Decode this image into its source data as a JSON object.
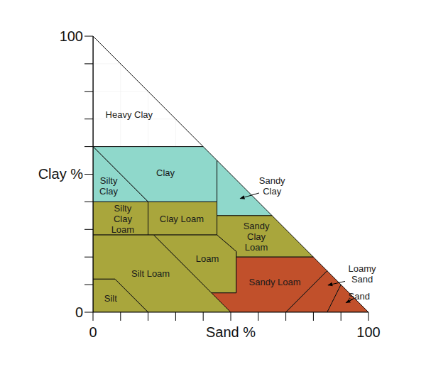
{
  "chart_data": {
    "type": "texture_triangle",
    "x_label": "Sand %",
    "y_label": "Clay %",
    "xlim": [
      0,
      100
    ],
    "ylim": [
      0,
      100
    ],
    "xticks": [
      0,
      100
    ],
    "yticks": [
      0,
      100
    ],
    "grid": true,
    "regions": [
      {
        "name": "Heavy Clay",
        "color": "#ffffff",
        "sand": [
          0,
          40,
          0
        ],
        "clay": [
          60,
          60,
          100
        ]
      },
      {
        "name": "Clay",
        "color": "#8fd8cb",
        "sand": [
          0,
          40,
          45,
          45,
          20
        ],
        "clay": [
          60,
          60,
          55,
          40,
          40
        ]
      },
      {
        "name": "Silty Clay",
        "color": "#8fd8cb",
        "sand": [
          0,
          20,
          0
        ],
        "clay": [
          40,
          40,
          60
        ]
      },
      {
        "name": "Silty Clay Loam",
        "color": "#a9a63c",
        "sand": [
          0,
          20,
          20,
          0
        ],
        "clay": [
          40,
          40,
          28,
          28
        ]
      },
      {
        "name": "Clay Loam",
        "color": "#a9a63c",
        "sand": [
          20,
          45,
          45,
          20
        ],
        "clay": [
          40,
          40,
          28,
          28
        ]
      },
      {
        "name": "Sandy Clay",
        "color": "#8fd8cb",
        "sand": [
          45,
          65,
          45
        ],
        "clay": [
          55,
          35,
          35
        ]
      },
      {
        "name": "Sandy Clay Loam",
        "color": "#a9a63c",
        "sand": [
          45,
          65,
          80,
          52,
          52,
          45
        ],
        "clay": [
          35,
          35,
          20,
          20,
          22,
          28
        ]
      },
      {
        "name": "Loam",
        "color": "#a9a63c",
        "sand": [
          22,
          45,
          52,
          52,
          43
        ],
        "clay": [
          28,
          28,
          22,
          7,
          7
        ]
      },
      {
        "name": "Silt Loam",
        "color": "#a9a63c",
        "sand": [
          0,
          22,
          43,
          50,
          20,
          8,
          0
        ],
        "clay": [
          28,
          28,
          7,
          0,
          0,
          12,
          12
        ]
      },
      {
        "name": "Silt",
        "color": "#a9a63c",
        "sand": [
          0,
          8,
          20,
          0
        ],
        "clay": [
          12,
          12,
          0,
          0
        ]
      },
      {
        "name": "Sandy Loam",
        "color": "#c1502b",
        "sand": [
          52,
          80,
          85,
          70,
          50,
          43,
          52
        ],
        "clay": [
          20,
          20,
          15,
          0,
          0,
          7,
          7
        ]
      },
      {
        "name": "Loamy Sand",
        "color": "#c1502b",
        "sand": [
          85,
          90,
          85,
          70
        ],
        "clay": [
          15,
          10,
          0,
          0
        ]
      },
      {
        "name": "Sand",
        "color": "#c1502b",
        "sand": [
          90,
          100,
          85
        ],
        "clay": [
          10,
          0,
          0
        ]
      }
    ]
  }
}
